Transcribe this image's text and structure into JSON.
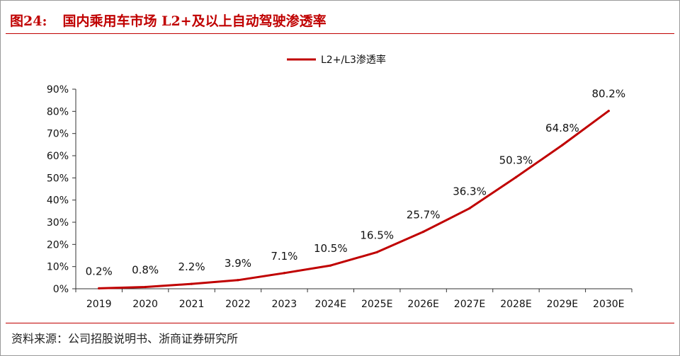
{
  "header": {
    "figure_number": "图24:",
    "title": "国内乘用车市场 L2+及以上自动驾驶渗透率"
  },
  "footer": {
    "source": "资料来源：公司招股说明书、浙商证券研究所"
  },
  "colors": {
    "accent": "#c00000",
    "line": "#c00000",
    "text": "#111111"
  },
  "chart_data": {
    "type": "line",
    "title": "",
    "xlabel": "",
    "ylabel": "",
    "categories": [
      "2019",
      "2020",
      "2021",
      "2022",
      "2023",
      "2024E",
      "2025E",
      "2026E",
      "2027E",
      "2028E",
      "2029E",
      "2030E"
    ],
    "series": [
      {
        "name": "L2+/L3渗透率",
        "values": [
          0.2,
          0.8,
          2.2,
          3.9,
          7.1,
          10.5,
          16.5,
          25.7,
          36.3,
          50.3,
          64.8,
          80.2
        ],
        "labels": [
          "0.2%",
          "0.8%",
          "2.2%",
          "3.9%",
          "7.1%",
          "10.5%",
          "16.5%",
          "25.7%",
          "36.3%",
          "50.3%",
          "64.8%",
          "80.2%"
        ]
      }
    ],
    "y_ticks": [
      "0%",
      "10%",
      "20%",
      "30%",
      "40%",
      "50%",
      "60%",
      "70%",
      "80%",
      "90%"
    ],
    "ylim": [
      0,
      90
    ],
    "grid": false,
    "legend": "top-center"
  }
}
